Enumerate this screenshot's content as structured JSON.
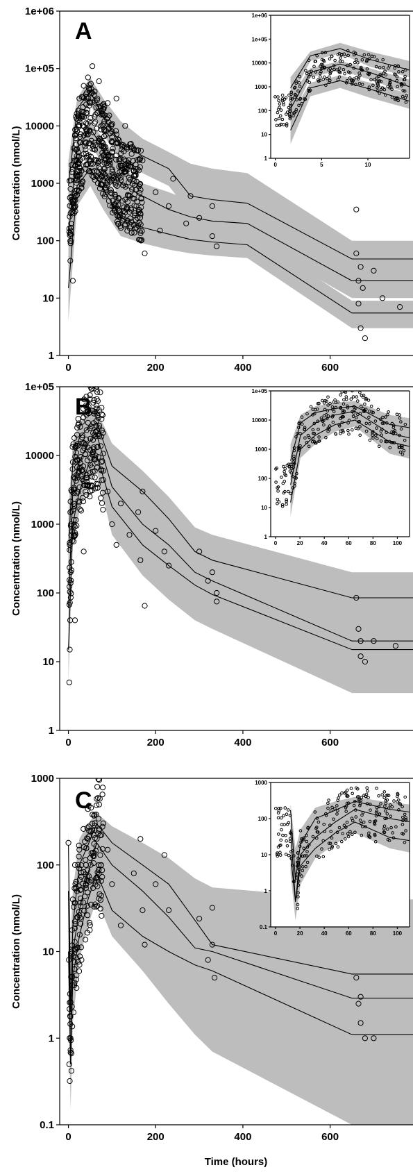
{
  "chart_data": [
    {
      "panel": "A",
      "type": "scatter",
      "ylabel": "Concentration (nmol/L)",
      "xlabel": "",
      "yscale": "log",
      "ylim": [
        1,
        1000000
      ],
      "xlim": [
        -20,
        790
      ],
      "yticks": [
        "1",
        "10",
        "100",
        "1000",
        "10000",
        "1e+05",
        "1e+06"
      ],
      "xticks": [
        "0",
        "200",
        "400",
        "600"
      ],
      "percentiles": [
        {
          "x": [
            0,
            20,
            50,
            80,
            120,
            170,
            230,
            280,
            330,
            410,
            650,
            790
          ],
          "y": [
            900,
            20000,
            40000,
            14000,
            5000,
            3000,
            1800,
            600,
            520,
            450,
            48,
            48
          ]
        },
        {
          "x": [
            0,
            20,
            50,
            80,
            120,
            170,
            230,
            280,
            330,
            410,
            650,
            790
          ],
          "y": [
            120,
            4000,
            9000,
            4000,
            1000,
            600,
            350,
            260,
            220,
            200,
            20,
            20
          ]
        },
        {
          "x": [
            0,
            20,
            50,
            80,
            120,
            170,
            230,
            280,
            330,
            410,
            650,
            790
          ],
          "y": [
            15,
            900,
            1800,
            800,
            250,
            170,
            130,
            105,
            95,
            85,
            5.5,
            5.5
          ]
        }
      ],
      "band_upper": [
        {
          "x": [
            0,
            20,
            50,
            80,
            120,
            170,
            230,
            280,
            330,
            410,
            650,
            790
          ],
          "y": [
            2500,
            30000,
            70000,
            30000,
            12000,
            6000,
            3500,
            2200,
            1800,
            1500,
            100,
            100
          ]
        },
        {
          "x": [
            0,
            20,
            50,
            80,
            120,
            170,
            230,
            280,
            330,
            410,
            650,
            790
          ],
          "y": [
            400,
            6000,
            12000,
            6000,
            2000,
            1000,
            700,
            500,
            420,
            380,
            35,
            35
          ]
        },
        {
          "x": [
            0,
            20,
            50,
            80,
            120,
            170,
            230,
            280,
            330,
            410,
            650,
            790
          ],
          "y": [
            60,
            1500,
            3000,
            1500,
            500,
            300,
            220,
            170,
            150,
            140,
            9,
            9
          ]
        }
      ],
      "band_lower": [
        {
          "x": [
            0,
            20,
            50,
            80,
            120,
            170,
            230,
            280,
            330,
            410,
            650,
            790
          ],
          "y": [
            300,
            12000,
            25000,
            7000,
            2500,
            1500,
            900,
            300,
            250,
            220,
            25,
            25
          ]
        },
        {
          "x": [
            0,
            20,
            50,
            80,
            120,
            170,
            230,
            280,
            330,
            410,
            650,
            790
          ],
          "y": [
            40,
            2500,
            5000,
            2000,
            500,
            300,
            160,
            140,
            120,
            110,
            10,
            10
          ]
        },
        {
          "x": [
            0,
            20,
            50,
            80,
            120,
            170,
            230,
            280,
            330,
            410,
            650,
            790
          ],
          "y": [
            4,
            400,
            900,
            350,
            120,
            90,
            70,
            60,
            55,
            50,
            3,
            3
          ]
        }
      ],
      "observations": [
        {
          "t": 5,
          "c": 300
        },
        {
          "t": 10,
          "c": 20
        },
        {
          "t": 15,
          "c": 2000
        },
        {
          "t": 20,
          "c": 8000
        },
        {
          "t": 25,
          "c": 30000
        },
        {
          "t": 30,
          "c": 15000
        },
        {
          "t": 35,
          "c": 50000
        },
        {
          "t": 40,
          "c": 5000
        },
        {
          "t": 45,
          "c": 70000
        },
        {
          "t": 50,
          "c": 25000
        },
        {
          "t": 55,
          "c": 110000
        },
        {
          "t": 60,
          "c": 40000
        },
        {
          "t": 65,
          "c": 9000
        },
        {
          "t": 70,
          "c": 60000
        },
        {
          "t": 75,
          "c": 18000
        },
        {
          "t": 80,
          "c": 3000
        },
        {
          "t": 90,
          "c": 25000
        },
        {
          "t": 100,
          "c": 8000
        },
        {
          "t": 110,
          "c": 30000
        },
        {
          "t": 120,
          "c": 2000
        },
        {
          "t": 130,
          "c": 10000
        },
        {
          "t": 140,
          "c": 600
        },
        {
          "t": 150,
          "c": 4000
        },
        {
          "t": 165,
          "c": 300
        },
        {
          "t": 170,
          "c": 2500
        },
        {
          "t": 175,
          "c": 60
        },
        {
          "t": 200,
          "c": 700
        },
        {
          "t": 210,
          "c": 150
        },
        {
          "t": 230,
          "c": 400
        },
        {
          "t": 240,
          "c": 1200
        },
        {
          "t": 270,
          "c": 200
        },
        {
          "t": 280,
          "c": 600
        },
        {
          "t": 300,
          "c": 250
        },
        {
          "t": 330,
          "c": 120
        },
        {
          "t": 330,
          "c": 400
        },
        {
          "t": 340,
          "c": 80
        },
        {
          "t": 660,
          "c": 350
        },
        {
          "t": 660,
          "c": 60
        },
        {
          "t": 665,
          "c": 20
        },
        {
          "t": 665,
          "c": 8
        },
        {
          "t": 670,
          "c": 35
        },
        {
          "t": 670,
          "c": 3
        },
        {
          "t": 675,
          "c": 15
        },
        {
          "t": 680,
          "c": 2
        },
        {
          "t": 700,
          "c": 30
        },
        {
          "t": 720,
          "c": 10
        },
        {
          "t": 760,
          "c": 7
        }
      ],
      "inset": {
        "yticks": [
          "1",
          "10",
          "100",
          "1000",
          "10000",
          "1e+05",
          "1e+06"
        ],
        "xticks": [
          "0",
          "5",
          "10"
        ],
        "ylim": [
          1,
          1000000
        ],
        "xlim": [
          -0.5,
          14.5
        ]
      }
    },
    {
      "panel": "B",
      "type": "scatter",
      "ylabel": "Concentration (nmol/L)",
      "xlabel": "",
      "yscale": "log",
      "ylim": [
        1,
        100000
      ],
      "xlim": [
        -20,
        790
      ],
      "yticks": [
        "1",
        "10",
        "100",
        "1000",
        "10000",
        "1e+05"
      ],
      "xticks": [
        "0",
        "200",
        "400",
        "600"
      ],
      "percentiles": [
        {
          "x": [
            0,
            10,
            25,
            45,
            65,
            100,
            170,
            230,
            290,
            330,
            650,
            790
          ],
          "y": [
            400,
            8000,
            18000,
            25000,
            30000,
            7000,
            3000,
            1200,
            400,
            300,
            85,
            85
          ]
        },
        {
          "x": [
            0,
            10,
            25,
            45,
            65,
            100,
            170,
            230,
            290,
            330,
            650,
            790
          ],
          "y": [
            60,
            3000,
            8000,
            15000,
            20000,
            3500,
            1000,
            500,
            200,
            150,
            20,
            20
          ]
        },
        {
          "x": [
            0,
            10,
            25,
            45,
            65,
            100,
            170,
            230,
            290,
            330,
            650,
            790
          ],
          "y": [
            15,
            1000,
            3000,
            7000,
            10000,
            1800,
            500,
            250,
            130,
            95,
            15,
            15
          ]
        }
      ],
      "band_upper": [
        {
          "x": [
            0,
            10,
            25,
            45,
            65,
            100,
            170,
            230,
            290,
            330,
            650,
            790
          ],
          "y": [
            1500,
            15000,
            30000,
            40000,
            45000,
            15000,
            6000,
            2500,
            900,
            700,
            200,
            200
          ]
        }
      ],
      "band_lower": [
        {
          "x": [
            0,
            10,
            25,
            45,
            65,
            100,
            170,
            230,
            290,
            330,
            650,
            790
          ],
          "y": [
            5,
            500,
            1500,
            4000,
            6000,
            700,
            180,
            80,
            40,
            30,
            3.5,
            3.5
          ]
        }
      ],
      "observations": [
        {
          "t": 2,
          "c": 5
        },
        {
          "t": 3,
          "c": 15
        },
        {
          "t": 4,
          "c": 40
        },
        {
          "t": 5,
          "c": 200
        },
        {
          "t": 6,
          "c": 1000
        },
        {
          "t": 8,
          "c": 3000
        },
        {
          "t": 10,
          "c": 8000
        },
        {
          "t": 15,
          "c": 40
        },
        {
          "t": 20,
          "c": 20000
        },
        {
          "t": 24,
          "c": 6000
        },
        {
          "t": 30,
          "c": 15000
        },
        {
          "t": 35,
          "c": 400
        },
        {
          "t": 45,
          "c": 30000
        },
        {
          "t": 50,
          "c": 12000
        },
        {
          "t": 55,
          "c": 45000
        },
        {
          "t": 60,
          "c": 20000
        },
        {
          "t": 65,
          "c": 8000
        },
        {
          "t": 70,
          "c": 25000
        },
        {
          "t": 80,
          "c": 6000
        },
        {
          "t": 90,
          "c": 3000
        },
        {
          "t": 100,
          "c": 1000
        },
        {
          "t": 110,
          "c": 500
        },
        {
          "t": 120,
          "c": 2000
        },
        {
          "t": 140,
          "c": 700
        },
        {
          "t": 160,
          "c": 1500
        },
        {
          "t": 165,
          "c": 300
        },
        {
          "t": 170,
          "c": 3000
        },
        {
          "t": 175,
          "c": 65
        },
        {
          "t": 200,
          "c": 800
        },
        {
          "t": 220,
          "c": 400
        },
        {
          "t": 230,
          "c": 250
        },
        {
          "t": 300,
          "c": 400
        },
        {
          "t": 320,
          "c": 150
        },
        {
          "t": 330,
          "c": 200
        },
        {
          "t": 340,
          "c": 100
        },
        {
          "t": 340,
          "c": 75
        },
        {
          "t": 660,
          "c": 85
        },
        {
          "t": 665,
          "c": 30
        },
        {
          "t": 670,
          "c": 20
        },
        {
          "t": 670,
          "c": 12
        },
        {
          "t": 680,
          "c": 10
        },
        {
          "t": 700,
          "c": 20
        },
        {
          "t": 750,
          "c": 17
        }
      ],
      "inset": {
        "yticks": [
          "1",
          "10",
          "100",
          "1000",
          "10000",
          "1e+05"
        ],
        "xticks": [
          "0",
          "20",
          "40",
          "60",
          "80",
          "100"
        ],
        "ylim": [
          1,
          100000
        ],
        "xlim": [
          -4,
          110
        ]
      }
    },
    {
      "panel": "C",
      "type": "scatter",
      "ylabel": "Concentration (nmol/L)",
      "xlabel": "Time (hours)",
      "yscale": "log",
      "ylim": [
        0.1,
        1000
      ],
      "xlim": [
        -20,
        790
      ],
      "yticks": [
        "0.1",
        "1",
        "10",
        "100",
        "1000"
      ],
      "xticks": [
        "0",
        "200",
        "400",
        "600"
      ],
      "percentiles": [
        {
          "x": [
            0,
            5,
            10,
            25,
            45,
            65,
            100,
            170,
            230,
            290,
            330,
            650,
            790
          ],
          "y": [
            170,
            2,
            20,
            100,
            170,
            300,
            180,
            100,
            60,
            23,
            12,
            5.5,
            5.5
          ]
        },
        {
          "x": [
            0,
            5,
            10,
            25,
            45,
            65,
            100,
            170,
            230,
            290,
            330,
            650,
            790
          ],
          "y": [
            50,
            0.5,
            10,
            30,
            80,
            180,
            100,
            50,
            25,
            11,
            10,
            2.9,
            2.9
          ]
        },
        {
          "x": [
            0,
            5,
            10,
            25,
            45,
            65,
            100,
            170,
            230,
            290,
            330,
            650,
            790
          ],
          "y": [
            10,
            0.5,
            5,
            15,
            40,
            80,
            30,
            15,
            10,
            7,
            6,
            1.1,
            1.1
          ]
        }
      ],
      "band_upper": [
        {
          "x": [
            0,
            5,
            10,
            25,
            45,
            65,
            100,
            170,
            230,
            290,
            330,
            650,
            790
          ],
          "y": [
            250,
            15,
            50,
            200,
            300,
            400,
            280,
            180,
            120,
            70,
            55,
            40,
            40
          ]
        }
      ],
      "band_lower": [
        {
          "x": [
            0,
            5,
            10,
            25,
            45,
            65,
            100,
            170,
            230,
            290,
            330,
            650,
            790
          ],
          "y": [
            3,
            0.15,
            1.5,
            8,
            20,
            40,
            15,
            6,
            2.5,
            1.1,
            0.7,
            0.1,
            0.1
          ]
        }
      ],
      "observations": [
        {
          "t": 0,
          "c": 180
        },
        {
          "t": 1,
          "c": 8
        },
        {
          "t": 2,
          "c": 0.5
        },
        {
          "t": 3,
          "c": 0.32
        },
        {
          "t": 5,
          "c": 1
        },
        {
          "t": 7,
          "c": 10
        },
        {
          "t": 10,
          "c": 40
        },
        {
          "t": 15,
          "c": 100
        },
        {
          "t": 20,
          "c": 25
        },
        {
          "t": 25,
          "c": 150
        },
        {
          "t": 30,
          "c": 8
        },
        {
          "t": 40,
          "c": 60
        },
        {
          "t": 45,
          "c": 200
        },
        {
          "t": 50,
          "c": 120
        },
        {
          "t": 55,
          "c": 300
        },
        {
          "t": 60,
          "c": 380
        },
        {
          "t": 65,
          "c": 200
        },
        {
          "t": 70,
          "c": 250
        },
        {
          "t": 75,
          "c": 100
        },
        {
          "t": 90,
          "c": 150
        },
        {
          "t": 100,
          "c": 60
        },
        {
          "t": 120,
          "c": 20
        },
        {
          "t": 150,
          "c": 80
        },
        {
          "t": 165,
          "c": 200
        },
        {
          "t": 170,
          "c": 30
        },
        {
          "t": 175,
          "c": 12
        },
        {
          "t": 200,
          "c": 60
        },
        {
          "t": 220,
          "c": 130
        },
        {
          "t": 230,
          "c": 30
        },
        {
          "t": 300,
          "c": 24
        },
        {
          "t": 320,
          "c": 8
        },
        {
          "t": 330,
          "c": 12
        },
        {
          "t": 330,
          "c": 32
        },
        {
          "t": 335,
          "c": 5
        },
        {
          "t": 660,
          "c": 5
        },
        {
          "t": 665,
          "c": 2.5
        },
        {
          "t": 670,
          "c": 1.5
        },
        {
          "t": 670,
          "c": 3
        },
        {
          "t": 680,
          "c": 1
        },
        {
          "t": 700,
          "c": 1
        }
      ],
      "inset": {
        "yticks": [
          "0.1",
          "1",
          "10",
          "100",
          "1000"
        ],
        "xticks": [
          "0",
          "20",
          "40",
          "60",
          "80",
          "100"
        ],
        "ylim": [
          0.1,
          1000
        ],
        "xlim": [
          -4,
          110
        ]
      }
    }
  ]
}
